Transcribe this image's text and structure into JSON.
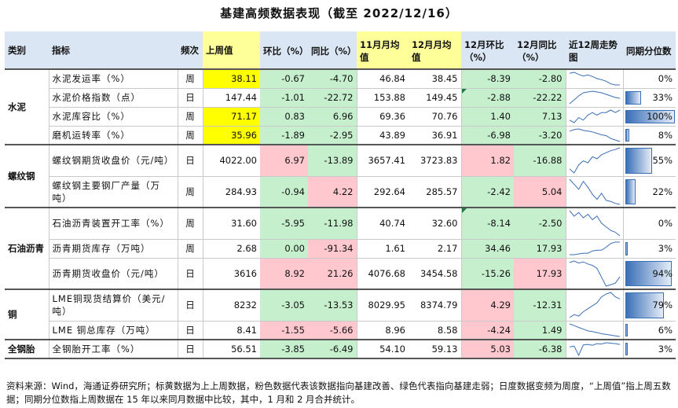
{
  "title": "基建高频数据表现（截至 2022/12/16）",
  "headers": {
    "category": "类别",
    "indicator": "指标",
    "frequency": "频次",
    "last_week": "上周值",
    "wow": "环比（%）",
    "yoy": "同比（%）",
    "nov_avg": "11月月均值",
    "dec_avg": "12月月均值",
    "dec_mom": "12月环比（%）",
    "dec_yoy": "12月同比（%）",
    "spark": "近12周走势图",
    "pct": "同期分位数"
  },
  "groups": [
    {
      "category": "水泥",
      "rows": [
        {
          "indicator": "水泥发运率（%）",
          "freq": "周",
          "last": "38.11",
          "wow": "-0.67",
          "yoy": "-4.70",
          "nov": "46.84",
          "dec": "38.45",
          "mom": "-8.39",
          "dyoy": "-2.80",
          "pct": "0%",
          "pct_value": 0,
          "last_hl": "yel",
          "wow_c": "green",
          "yoy_c": "green",
          "mom_c": "green",
          "dyoy_c": "green",
          "spark": [
            60,
            62,
            58,
            55,
            57,
            54,
            50,
            48,
            45,
            40,
            38,
            38
          ],
          "corner": false
        },
        {
          "indicator": "水泥价格指数（点）",
          "freq": "日",
          "last": "147.44",
          "wow": "-1.01",
          "yoy": "-22.72",
          "nov": "153.88",
          "dec": "149.45",
          "mom": "-2.88",
          "dyoy": "-22.22",
          "pct": "33%",
          "pct_value": 33,
          "last_hl": "",
          "wow_c": "green",
          "yoy_c": "green",
          "mom_c": "green",
          "dyoy_c": "green",
          "spark": [
            140,
            145,
            150,
            154,
            155,
            156,
            155,
            154,
            152,
            150,
            148,
            147
          ],
          "corner": true
        },
        {
          "indicator": "水泥库容比（%）",
          "freq": "周",
          "last": "71.17",
          "wow": "0.83",
          "yoy": "6.96",
          "nov": "69.36",
          "dec": "70.76",
          "mom": "1.40",
          "dyoy": "7.13",
          "pct": "100%",
          "pct_value": 100,
          "last_hl": "yel",
          "wow_c": "green",
          "yoy_c": "green",
          "mom_c": "green",
          "dyoy_c": "green",
          "spark": [
            67,
            66,
            68,
            67,
            69,
            70,
            69,
            70,
            70,
            71,
            70,
            71
          ],
          "corner": false
        },
        {
          "indicator": "磨机运转率（%）",
          "freq": "周",
          "last": "35.96",
          "wow": "-1.89",
          "yoy": "-2.95",
          "nov": "43.89",
          "dec": "36.91",
          "mom": "-6.98",
          "dyoy": "-3.20",
          "pct": "8%",
          "pct_value": 8,
          "last_hl": "yel",
          "wow_c": "green",
          "yoy_c": "green",
          "mom_c": "green",
          "dyoy_c": "green",
          "spark": [
            50,
            52,
            53,
            51,
            50,
            49,
            47,
            45,
            44,
            40,
            38,
            36
          ],
          "corner": false
        }
      ]
    },
    {
      "category": "螺纹钢",
      "rows": [
        {
          "indicator": "螺纹钢期货收盘价（元/吨）",
          "freq": "日",
          "last": "4022.00",
          "wow": "6.97",
          "yoy": "-13.89",
          "nov": "3657.41",
          "dec": "3723.83",
          "mom": "1.82",
          "dyoy": "-16.88",
          "pct": "55%",
          "pct_value": 55,
          "last_hl": "",
          "wow_c": "pink",
          "yoy_c": "green",
          "mom_c": "pink",
          "dyoy_c": "green",
          "spark": [
            3500,
            3400,
            3600,
            3700,
            3650,
            3800,
            3750,
            3850,
            3900,
            3950,
            3980,
            4022
          ],
          "corner": false
        },
        {
          "indicator": "螺纹钢主要钢厂产量（万吨）",
          "freq": "周",
          "last": "284.93",
          "wow": "-0.94",
          "yoy": "4.22",
          "nov": "292.64",
          "dec": "285.57",
          "mom": "-2.42",
          "dyoy": "5.04",
          "pct": "22%",
          "pct_value": 22,
          "last_hl": "",
          "wow_c": "green",
          "yoy_c": "pink",
          "mom_c": "green",
          "dyoy_c": "pink",
          "spark": [
            310,
            305,
            300,
            308,
            302,
            295,
            290,
            296,
            289,
            288,
            286,
            285
          ],
          "corner": false
        }
      ]
    },
    {
      "category": "石油沥青",
      "rows": [
        {
          "indicator": "石油沥青装置开工率（%）",
          "freq": "周",
          "last": "31.60",
          "wow": "-5.95",
          "yoy": "-11.98",
          "nov": "40.74",
          "dec": "32.60",
          "mom": "-8.14",
          "dyoy": "-2.50",
          "pct": "0%",
          "pct_value": 0,
          "last_hl": "",
          "wow_c": "green",
          "yoy_c": "green",
          "mom_c": "green",
          "dyoy_c": "green",
          "spark": [
            45,
            42,
            44,
            41,
            43,
            40,
            42,
            38,
            36,
            34,
            33,
            31
          ],
          "corner": true
        },
        {
          "indicator": "沥青期货库存（万吨）",
          "freq": "周",
          "last": "2.68",
          "wow": "0.00",
          "yoy": "-91.34",
          "nov": "1.61",
          "dec": "2.17",
          "mom": "34.46",
          "dyoy": "17.93",
          "pct": "3%",
          "pct_value": 3,
          "last_hl": "",
          "wow_c": "green",
          "yoy_c": "pink",
          "mom_c": "green",
          "dyoy_c": "green",
          "spark": [
            1.0,
            1.0,
            1.1,
            1.2,
            1.2,
            1.5,
            1.6,
            1.6,
            2.0,
            2.5,
            2.68,
            2.68
          ],
          "corner": false
        },
        {
          "indicator": "沥青期货收盘价（元/吨）",
          "freq": "日",
          "last": "3616",
          "wow": "8.92",
          "yoy": "21.26",
          "nov": "4076.68",
          "dec": "3454.58",
          "mom": "-15.26",
          "dyoy": "17.93",
          "pct": "94%",
          "pct_value": 94,
          "last_hl": "",
          "wow_c": "pink",
          "yoy_c": "pink",
          "mom_c": "green",
          "dyoy_c": "pink",
          "spark": [
            4100,
            4150,
            4080,
            4120,
            4050,
            4000,
            3900,
            3600,
            3300,
            3350,
            3400,
            3616
          ],
          "corner": false
        }
      ]
    },
    {
      "category": "铜",
      "rows": [
        {
          "indicator": "LME铜现货结算价（美元/吨）",
          "freq": "日",
          "last": "8232",
          "wow": "-3.05",
          "yoy": "-13.53",
          "nov": "8029.95",
          "dec": "8374.79",
          "mom": "4.29",
          "dyoy": "-12.31",
          "pct": "79%",
          "pct_value": 79,
          "last_hl": "",
          "wow_c": "green",
          "yoy_c": "green",
          "mom_c": "pink",
          "dyoy_c": "green",
          "spark": [
            7600,
            7700,
            7650,
            7800,
            7900,
            8000,
            8100,
            8300,
            8400,
            8450,
            8300,
            8232
          ],
          "corner": false
        },
        {
          "indicator": "LME 铜总库存（万吨）",
          "freq": "日",
          "last": "8.41",
          "wow": "-1.55",
          "yoy": "-5.66",
          "nov": "8.96",
          "dec": "8.58",
          "mom": "-4.24",
          "dyoy": "1.49",
          "pct": "6%",
          "pct_value": 6,
          "last_hl": "",
          "wow_c": "pink",
          "yoy_c": "pink",
          "mom_c": "pink",
          "dyoy_c": "green",
          "spark": [
            12,
            11.5,
            11,
            10.5,
            10,
            9.8,
            9.5,
            9.2,
            9.0,
            8.8,
            8.6,
            8.41
          ],
          "corner": false
        }
      ]
    },
    {
      "category": "全钢胎",
      "rows": [
        {
          "indicator": "全钢胎开工率（%）",
          "freq": "日",
          "last": "56.51",
          "wow": "-3.85",
          "yoy": "-6.49",
          "nov": "54.10",
          "dec": "59.13",
          "mom": "5.03",
          "dyoy": "-6.38",
          "pct": "3%",
          "pct_value": 3,
          "last_hl": "",
          "wow_c": "green",
          "yoy_c": "green",
          "mom_c": "pink",
          "dyoy_c": "green",
          "spark": [
            50,
            52,
            30,
            55,
            56,
            54,
            58,
            57,
            60,
            59,
            58,
            56
          ],
          "corner": false
        }
      ]
    }
  ],
  "footnote": "资料来源：Wind，海通证券研究所；标黄数据为上上周数据，粉色数据代表该数据指向基建改善、绿色代表指向基建走弱；日度数据变频为周度，“上周值”指上周五数据；同期分位数指上周数据在 15 年以来同月数据中比较，其中，1 月和 2 月合并统计。",
  "colors": {
    "pink": "#ffc7ce",
    "green": "#c6efce",
    "yellow": "#ffff00",
    "header": "#dbe6f4",
    "bar": "#3a6fb7"
  }
}
